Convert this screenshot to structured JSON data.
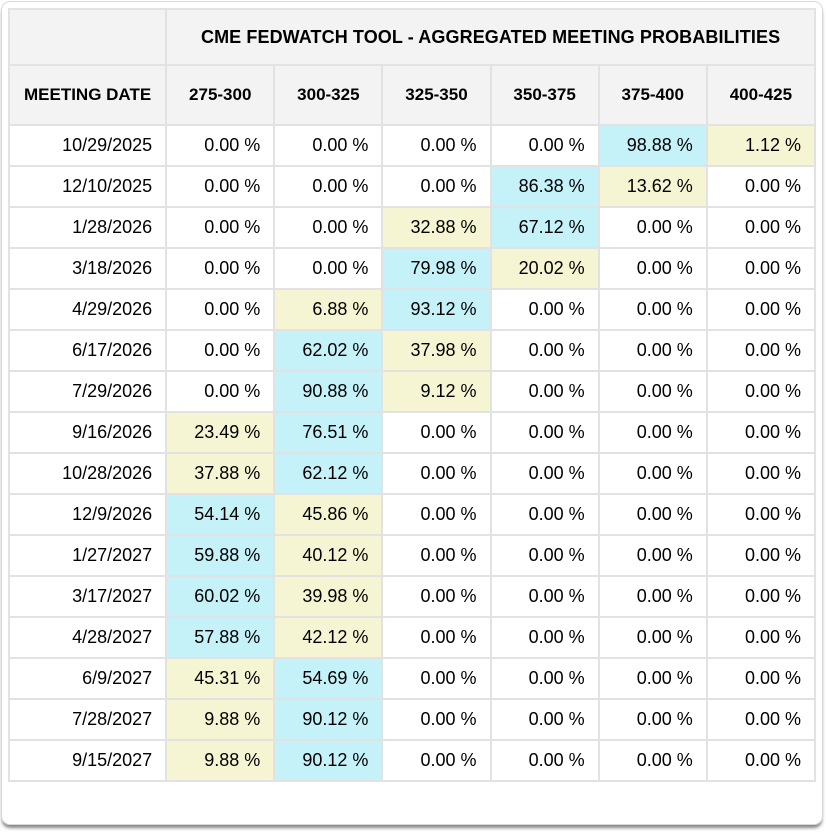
{
  "title": "CME FEDWATCH TOOL - AGGREGATED MEETING PROBABILITIES",
  "colors": {
    "highlight_cyan": "#c5f1f8",
    "highlight_yellow": "#f5f5d3",
    "header_bg": "#f3f3f3",
    "cell_border": "#e2e2e2"
  },
  "table": {
    "date_header": "MEETING DATE",
    "range_headers": [
      "275-300",
      "300-325",
      "325-350",
      "350-375",
      "375-400",
      "400-425"
    ],
    "rows": [
      {
        "date": "10/29/2025",
        "cells": [
          {
            "v": "0.00 %"
          },
          {
            "v": "0.00 %"
          },
          {
            "v": "0.00 %"
          },
          {
            "v": "0.00 %"
          },
          {
            "v": "98.88 %",
            "hl": "cyan"
          },
          {
            "v": "1.12 %",
            "hl": "yellow"
          }
        ]
      },
      {
        "date": "12/10/2025",
        "cells": [
          {
            "v": "0.00 %"
          },
          {
            "v": "0.00 %"
          },
          {
            "v": "0.00 %"
          },
          {
            "v": "86.38 %",
            "hl": "cyan"
          },
          {
            "v": "13.62 %",
            "hl": "yellow"
          },
          {
            "v": "0.00 %"
          }
        ]
      },
      {
        "date": "1/28/2026",
        "cells": [
          {
            "v": "0.00 %"
          },
          {
            "v": "0.00 %"
          },
          {
            "v": "32.88 %",
            "hl": "yellow"
          },
          {
            "v": "67.12 %",
            "hl": "cyan"
          },
          {
            "v": "0.00 %"
          },
          {
            "v": "0.00 %"
          }
        ]
      },
      {
        "date": "3/18/2026",
        "cells": [
          {
            "v": "0.00 %"
          },
          {
            "v": "0.00 %"
          },
          {
            "v": "79.98 %",
            "hl": "cyan"
          },
          {
            "v": "20.02 %",
            "hl": "yellow"
          },
          {
            "v": "0.00 %"
          },
          {
            "v": "0.00 %"
          }
        ]
      },
      {
        "date": "4/29/2026",
        "cells": [
          {
            "v": "0.00 %"
          },
          {
            "v": "6.88 %",
            "hl": "yellow"
          },
          {
            "v": "93.12 %",
            "hl": "cyan"
          },
          {
            "v": "0.00 %"
          },
          {
            "v": "0.00 %"
          },
          {
            "v": "0.00 %"
          }
        ]
      },
      {
        "date": "6/17/2026",
        "cells": [
          {
            "v": "0.00 %"
          },
          {
            "v": "62.02 %",
            "hl": "cyan"
          },
          {
            "v": "37.98 %",
            "hl": "yellow"
          },
          {
            "v": "0.00 %"
          },
          {
            "v": "0.00 %"
          },
          {
            "v": "0.00 %"
          }
        ]
      },
      {
        "date": "7/29/2026",
        "cells": [
          {
            "v": "0.00 %"
          },
          {
            "v": "90.88 %",
            "hl": "cyan"
          },
          {
            "v": "9.12 %",
            "hl": "yellow"
          },
          {
            "v": "0.00 %"
          },
          {
            "v": "0.00 %"
          },
          {
            "v": "0.00 %"
          }
        ]
      },
      {
        "date": "9/16/2026",
        "cells": [
          {
            "v": "23.49 %",
            "hl": "yellow"
          },
          {
            "v": "76.51 %",
            "hl": "cyan"
          },
          {
            "v": "0.00 %"
          },
          {
            "v": "0.00 %"
          },
          {
            "v": "0.00 %"
          },
          {
            "v": "0.00 %"
          }
        ]
      },
      {
        "date": "10/28/2026",
        "cells": [
          {
            "v": "37.88 %",
            "hl": "yellow"
          },
          {
            "v": "62.12 %",
            "hl": "cyan"
          },
          {
            "v": "0.00 %"
          },
          {
            "v": "0.00 %"
          },
          {
            "v": "0.00 %"
          },
          {
            "v": "0.00 %"
          }
        ]
      },
      {
        "date": "12/9/2026",
        "cells": [
          {
            "v": "54.14 %",
            "hl": "cyan"
          },
          {
            "v": "45.86 %",
            "hl": "yellow"
          },
          {
            "v": "0.00 %"
          },
          {
            "v": "0.00 %"
          },
          {
            "v": "0.00 %"
          },
          {
            "v": "0.00 %"
          }
        ]
      },
      {
        "date": "1/27/2027",
        "cells": [
          {
            "v": "59.88 %",
            "hl": "cyan"
          },
          {
            "v": "40.12 %",
            "hl": "yellow"
          },
          {
            "v": "0.00 %"
          },
          {
            "v": "0.00 %"
          },
          {
            "v": "0.00 %"
          },
          {
            "v": "0.00 %"
          }
        ]
      },
      {
        "date": "3/17/2027",
        "cells": [
          {
            "v": "60.02 %",
            "hl": "cyan"
          },
          {
            "v": "39.98 %",
            "hl": "yellow"
          },
          {
            "v": "0.00 %"
          },
          {
            "v": "0.00 %"
          },
          {
            "v": "0.00 %"
          },
          {
            "v": "0.00 %"
          }
        ]
      },
      {
        "date": "4/28/2027",
        "cells": [
          {
            "v": "57.88 %",
            "hl": "cyan"
          },
          {
            "v": "42.12 %",
            "hl": "yellow"
          },
          {
            "v": "0.00 %"
          },
          {
            "v": "0.00 %"
          },
          {
            "v": "0.00 %"
          },
          {
            "v": "0.00 %"
          }
        ]
      },
      {
        "date": "6/9/2027",
        "cells": [
          {
            "v": "45.31 %",
            "hl": "yellow"
          },
          {
            "v": "54.69 %",
            "hl": "cyan"
          },
          {
            "v": "0.00 %"
          },
          {
            "v": "0.00 %"
          },
          {
            "v": "0.00 %"
          },
          {
            "v": "0.00 %"
          }
        ]
      },
      {
        "date": "7/28/2027",
        "cells": [
          {
            "v": "9.88 %",
            "hl": "yellow"
          },
          {
            "v": "90.12 %",
            "hl": "cyan"
          },
          {
            "v": "0.00 %"
          },
          {
            "v": "0.00 %"
          },
          {
            "v": "0.00 %"
          },
          {
            "v": "0.00 %"
          }
        ]
      },
      {
        "date": "9/15/2027",
        "cells": [
          {
            "v": "9.88 %",
            "hl": "yellow"
          },
          {
            "v": "90.12 %",
            "hl": "cyan"
          },
          {
            "v": "0.00 %"
          },
          {
            "v": "0.00 %"
          },
          {
            "v": "0.00 %"
          },
          {
            "v": "0.00 %"
          }
        ]
      }
    ]
  }
}
